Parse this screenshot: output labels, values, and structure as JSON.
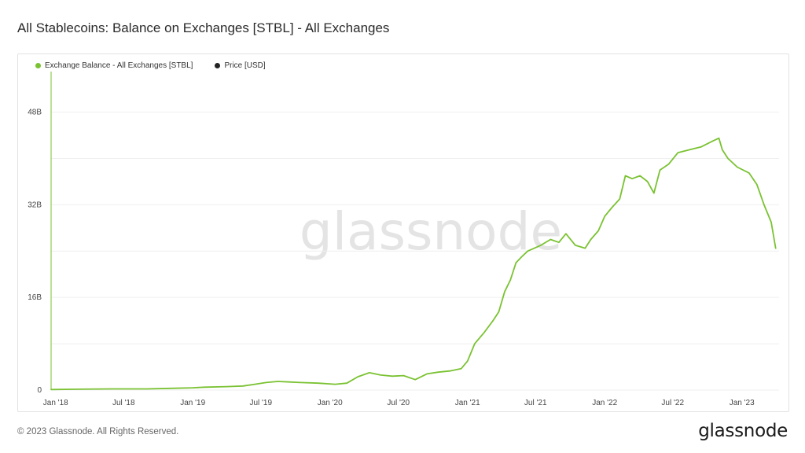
{
  "title": "All Stablecoins: Balance on Exchanges [STBL] - All Exchanges",
  "footer": "© 2023 Glassnode. All Rights Reserved.",
  "brand": "glassnode",
  "watermark": "glassnode",
  "colors": {
    "balance": "#7ac231",
    "price": "#222222",
    "grid": "#efefef",
    "watermark": "#e4e4e4"
  },
  "chart_data": {
    "type": "line",
    "x_tick_labels": [
      "Jan '18",
      "Jul '18",
      "Jan '19",
      "Jul '19",
      "Jan '20",
      "Jul '20",
      "Jan '21",
      "Jul '21",
      "Jan '22",
      "Jul '22",
      "Jan '23"
    ],
    "x_range": [
      "2017-12-20",
      "2023-04-10"
    ],
    "y_tick_labels": [
      "0",
      "16B",
      "32B",
      "48B"
    ],
    "ylim": [
      0,
      55
    ],
    "y_unit": "B",
    "grid": true,
    "legend_position": "top-left",
    "series": [
      {
        "name": "Exchange Balance - All Exchanges [STBL]",
        "color": "#7ac231",
        "points": [
          [
            "2017-12-20",
            0.1
          ],
          [
            "2018-03-01",
            0.15
          ],
          [
            "2018-06-01",
            0.2
          ],
          [
            "2018-09-01",
            0.2
          ],
          [
            "2018-11-01",
            0.3
          ],
          [
            "2019-01-01",
            0.4
          ],
          [
            "2019-02-01",
            0.5
          ],
          [
            "2019-04-01",
            0.6
          ],
          [
            "2019-05-15",
            0.7
          ],
          [
            "2019-06-15",
            1.0
          ],
          [
            "2019-07-15",
            1.3
          ],
          [
            "2019-08-15",
            1.5
          ],
          [
            "2019-09-15",
            1.4
          ],
          [
            "2019-10-15",
            1.3
          ],
          [
            "2019-12-01",
            1.2
          ],
          [
            "2020-01-15",
            1.0
          ],
          [
            "2020-02-15",
            1.2
          ],
          [
            "2020-03-15",
            2.3
          ],
          [
            "2020-04-15",
            3.0
          ],
          [
            "2020-05-15",
            2.6
          ],
          [
            "2020-06-15",
            2.4
          ],
          [
            "2020-07-15",
            2.5
          ],
          [
            "2020-08-15",
            1.8
          ],
          [
            "2020-09-15",
            2.8
          ],
          [
            "2020-10-15",
            3.1
          ],
          [
            "2020-11-15",
            3.3
          ],
          [
            "2020-12-15",
            3.7
          ],
          [
            "2021-01-01",
            5.0
          ],
          [
            "2021-01-20",
            8.0
          ],
          [
            "2021-02-15",
            10.0
          ],
          [
            "2021-03-10",
            12.0
          ],
          [
            "2021-03-25",
            13.5
          ],
          [
            "2021-04-10",
            17.0
          ],
          [
            "2021-04-25",
            19.0
          ],
          [
            "2021-05-10",
            22.0
          ],
          [
            "2021-05-25",
            23.0
          ],
          [
            "2021-06-10",
            24.0
          ],
          [
            "2021-07-15",
            25.0
          ],
          [
            "2021-08-10",
            26.0
          ],
          [
            "2021-09-01",
            25.5
          ],
          [
            "2021-09-20",
            27.0
          ],
          [
            "2021-10-15",
            25.0
          ],
          [
            "2021-11-10",
            24.5
          ],
          [
            "2021-11-25",
            26.0
          ],
          [
            "2021-12-15",
            27.5
          ],
          [
            "2022-01-01",
            30.0
          ],
          [
            "2022-01-20",
            31.5
          ],
          [
            "2022-02-10",
            33.0
          ],
          [
            "2022-02-25",
            37.0
          ],
          [
            "2022-03-15",
            36.5
          ],
          [
            "2022-04-05",
            37.0
          ],
          [
            "2022-04-25",
            36.0
          ],
          [
            "2022-05-12",
            34.0
          ],
          [
            "2022-05-28",
            38.0
          ],
          [
            "2022-06-20",
            39.0
          ],
          [
            "2022-07-15",
            41.0
          ],
          [
            "2022-08-15",
            41.5
          ],
          [
            "2022-09-15",
            42.0
          ],
          [
            "2022-10-15",
            43.0
          ],
          [
            "2022-11-01",
            43.5
          ],
          [
            "2022-11-10",
            41.5
          ],
          [
            "2022-11-25",
            40.0
          ],
          [
            "2022-12-20",
            38.5
          ],
          [
            "2023-01-20",
            37.5
          ],
          [
            "2023-02-10",
            35.5
          ],
          [
            "2023-03-01",
            32.0
          ],
          [
            "2023-03-20",
            29.0
          ],
          [
            "2023-04-01",
            24.5
          ]
        ]
      },
      {
        "name": "Price [USD]",
        "color": "#222222",
        "points": []
      }
    ]
  }
}
